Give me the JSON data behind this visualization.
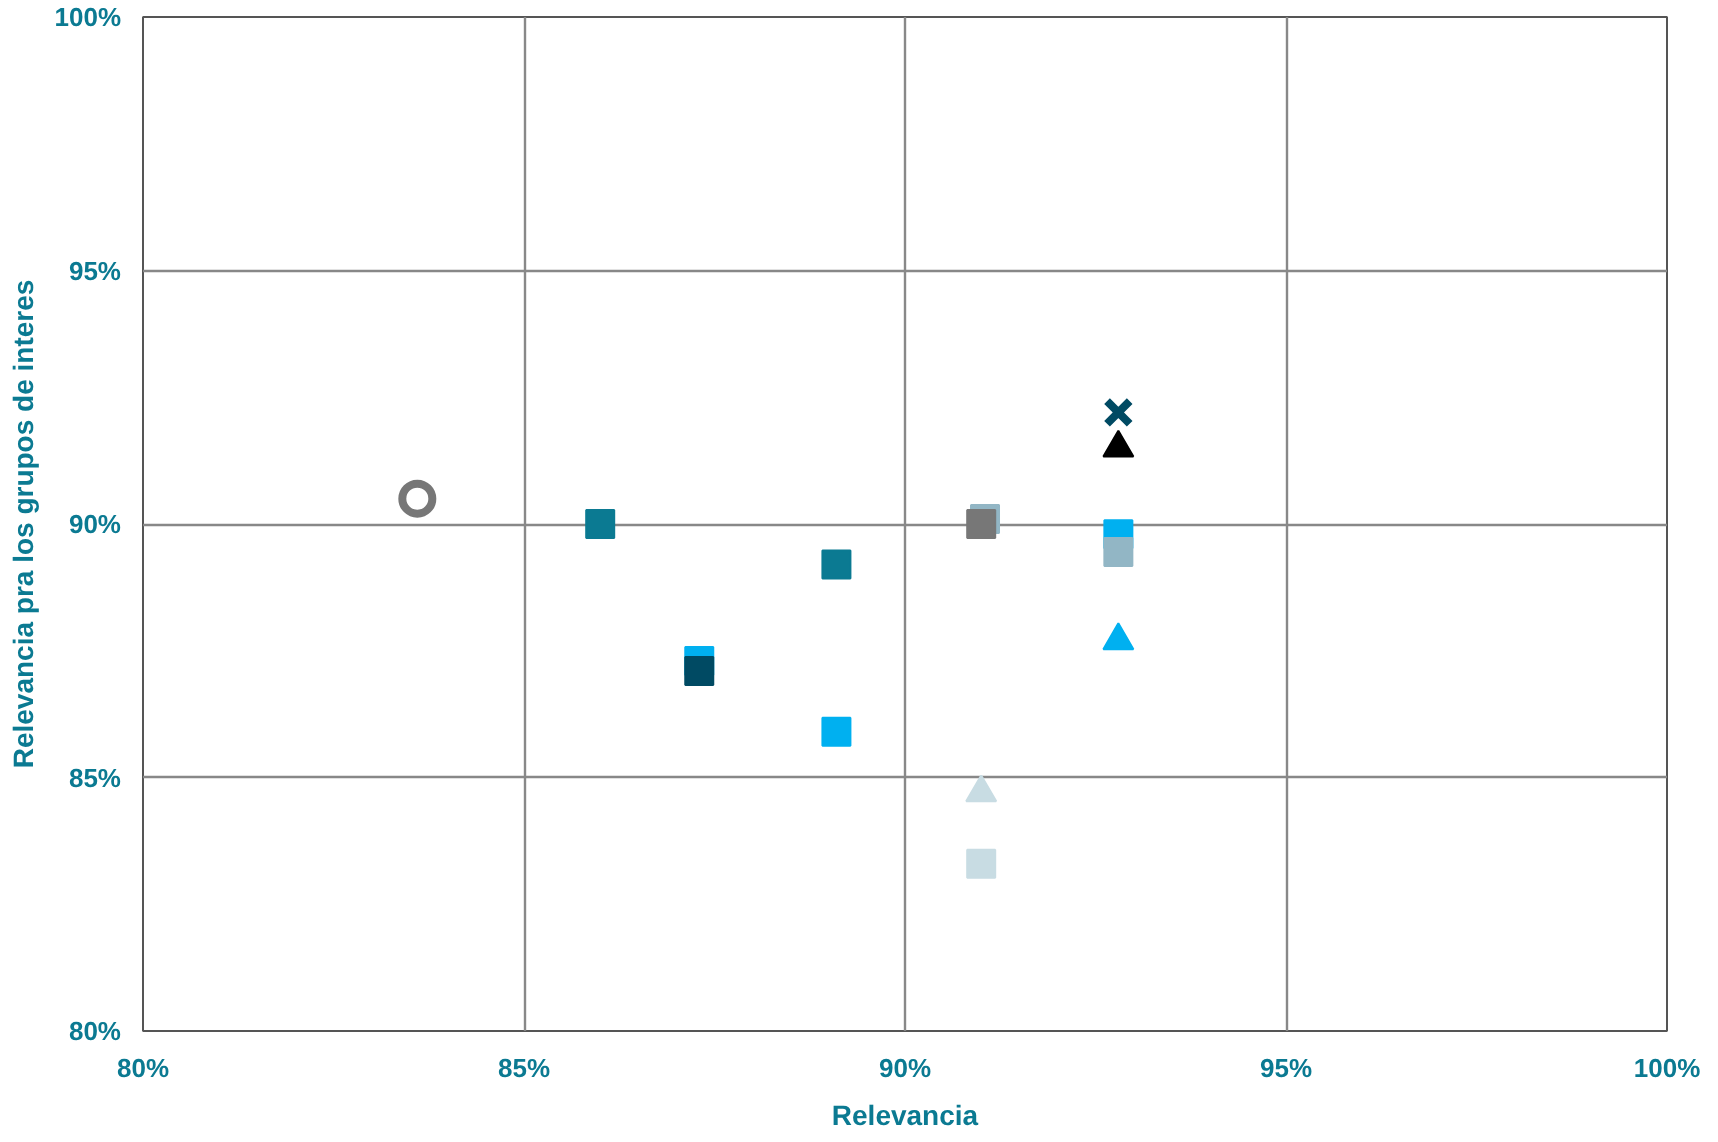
{
  "chart_data": {
    "type": "scatter",
    "xlabel": "Relevancia",
    "ylabel": "Relevancia pra los grupos de interes",
    "xlim": [
      80,
      100
    ],
    "ylim": [
      80,
      100
    ],
    "xticks": [
      {
        "value": 80,
        "label": "80%"
      },
      {
        "value": 85,
        "label": "85%"
      },
      {
        "value": 90,
        "label": "90%"
      },
      {
        "value": 95,
        "label": "95%"
      },
      {
        "value": 100,
        "label": "100%"
      }
    ],
    "yticks": [
      {
        "value": 80,
        "label": "80%"
      },
      {
        "value": 85,
        "label": "85%"
      },
      {
        "value": 90,
        "label": "90%"
      },
      {
        "value": 95,
        "label": "95%"
      },
      {
        "value": 100,
        "label": "100%"
      }
    ],
    "grid": true,
    "series": [
      {
        "color": "#777777",
        "marker": "circle",
        "x": [
          83.6
        ],
        "values": [
          90.5
        ]
      },
      {
        "color": "#0b7a92",
        "marker": "square",
        "x": [
          86.0
        ],
        "values": [
          90.0
        ]
      },
      {
        "color": "#0b7a92",
        "marker": "square",
        "x": [
          89.1
        ],
        "values": [
          89.2
        ]
      },
      {
        "color": "#00b0f0",
        "marker": "square",
        "x": [
          87.3
        ],
        "values": [
          87.3
        ]
      },
      {
        "color": "#004a63",
        "marker": "square",
        "x": [
          87.3
        ],
        "values": [
          87.1
        ]
      },
      {
        "color": "#00b0f0",
        "marker": "square",
        "x": [
          89.1
        ],
        "values": [
          85.9
        ]
      },
      {
        "color": "#92b6c5",
        "marker": "square",
        "x": [
          91.05
        ],
        "values": [
          90.1
        ]
      },
      {
        "color": "#777777",
        "marker": "square",
        "x": [
          91.0
        ],
        "values": [
          90.0
        ]
      },
      {
        "color": "#004a63",
        "marker": "cross",
        "x": [
          92.8
        ],
        "values": [
          92.2
        ]
      },
      {
        "color": "#000000",
        "marker": "triangle",
        "x": [
          92.8
        ],
        "values": [
          91.5
        ]
      },
      {
        "color": "#00b0f0",
        "marker": "square",
        "x": [
          92.8
        ],
        "values": [
          89.8
        ]
      },
      {
        "color": "#92b6c5",
        "marker": "square",
        "x": [
          92.8
        ],
        "values": [
          89.45
        ]
      },
      {
        "color": "#00b0f0",
        "marker": "triangle",
        "x": [
          92.8
        ],
        "values": [
          87.7
        ]
      },
      {
        "color": "#c8dce3",
        "marker": "triangle",
        "x": [
          91.0
        ],
        "values": [
          84.7
        ]
      },
      {
        "color": "#c8dce3",
        "marker": "square",
        "x": [
          91.0
        ],
        "values": [
          83.3
        ]
      }
    ]
  }
}
